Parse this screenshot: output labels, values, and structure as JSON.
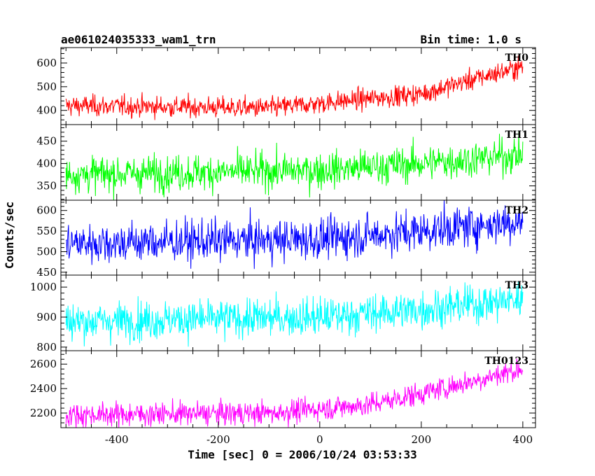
{
  "header": {
    "title": "ae061024035333_wam1_trn",
    "bin_time": "Bin time: 1.0 s"
  },
  "axes": {
    "xlabel": "Time [sec] 0 = 2006/10/24 03:53:33",
    "ylabel": "Counts/sec"
  },
  "chart_data": {
    "type": "line",
    "x": {
      "min": -500,
      "max": 400,
      "step": 1,
      "range": [
        -510,
        425
      ],
      "major_ticks": [
        -400,
        -200,
        0,
        200,
        400
      ]
    },
    "series": [
      {
        "name": "TH0",
        "color": "#ff0000",
        "ylim": [
          340,
          665
        ],
        "major_ticks": [
          400,
          500,
          600
        ],
        "trend": [
          [
            -500,
            420
          ],
          [
            -100,
            410
          ],
          [
            0,
            430
          ],
          [
            200,
            470
          ],
          [
            300,
            530
          ],
          [
            400,
            585
          ]
        ],
        "noise": 22
      },
      {
        "name": "TH1",
        "color": "#00ff00",
        "ylim": [
          318,
          487
        ],
        "major_ticks": [
          350,
          400,
          450
        ],
        "trend": [
          [
            -500,
            375
          ],
          [
            0,
            385
          ],
          [
            200,
            400
          ],
          [
            400,
            420
          ]
        ],
        "noise": 20
      },
      {
        "name": "TH2",
        "color": "#0000ff",
        "ylim": [
          443,
          625
        ],
        "major_ticks": [
          450,
          500,
          550,
          600
        ],
        "trend": [
          [
            -500,
            520
          ],
          [
            0,
            530
          ],
          [
            200,
            550
          ],
          [
            400,
            575
          ]
        ],
        "noise": 25
      },
      {
        "name": "TH3",
        "color": "#00ffff",
        "ylim": [
          788,
          1040
        ],
        "major_ticks": [
          800,
          900,
          1000
        ],
        "trend": [
          [
            -500,
            885
          ],
          [
            0,
            900
          ],
          [
            200,
            925
          ],
          [
            400,
            960
          ]
        ],
        "noise": 32
      },
      {
        "name": "TH0123",
        "color": "#ff00ff",
        "ylim": [
          2080,
          2710
        ],
        "major_ticks": [
          2200,
          2400,
          2600
        ],
        "trend": [
          [
            -500,
            2185
          ],
          [
            -100,
            2200
          ],
          [
            100,
            2270
          ],
          [
            200,
            2360
          ],
          [
            300,
            2460
          ],
          [
            400,
            2565
          ]
        ],
        "noise": 48
      }
    ]
  }
}
